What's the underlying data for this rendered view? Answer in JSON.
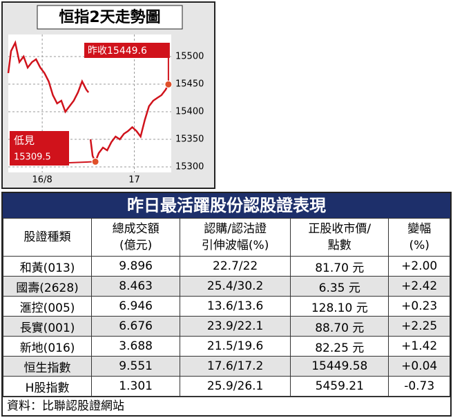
{
  "chart_data": {
    "type": "line",
    "title": "恒指2天走勢圖",
    "x": [
      0,
      1.7,
      4.3,
      6.9,
      9.5,
      12,
      14.7,
      17.2,
      19.8,
      22.4,
      25,
      27.6,
      30.2,
      32.8,
      35.3,
      37.9,
      40.5,
      43.1,
      45.7,
      48.3,
      49.6,
      50,
      50.9,
      52.2,
      53.9,
      56,
      58.6,
      61.2,
      63.8,
      66.4,
      69,
      71.6,
      74.1,
      76.7,
      79.3,
      81.9,
      84.5,
      87.1,
      89.7,
      92.2,
      94.8,
      97.4,
      99.1
    ],
    "values": [
      15470,
      15510,
      15525,
      15490,
      15500,
      15480,
      15490,
      15495,
      15480,
      15470,
      15455,
      15430,
      15415,
      15420,
      15400,
      15410,
      15420,
      15435,
      15455,
      15440,
      15435,
      null,
      15350,
      15320,
      15309.5,
      15325,
      15335,
      15330,
      15345,
      15355,
      15350,
      15360,
      15365,
      15372,
      15365,
      15355,
      15385,
      15410,
      15420,
      15425,
      15430,
      15440,
      15449.6
    ],
    "color": "#d0121b",
    "xlim": [
      0,
      100
    ],
    "xticks": [
      {
        "value": 21,
        "label": "16/8"
      },
      {
        "value": 78,
        "label": "17"
      }
    ],
    "ylim": [
      15290,
      15540
    ],
    "yticks": [
      15300,
      15350,
      15400,
      15450,
      15500
    ],
    "grid": true,
    "annotations": [
      "昨收15449.6",
      "低見",
      "15309.5"
    ]
  },
  "table": {
    "title": "昨日最活躍股份認股證表現",
    "header": [
      [
        "股證種類"
      ],
      [
        "總成交額",
        "(億元)"
      ],
      [
        "認購/認沽證",
        "引伸波幅(%)"
      ],
      [
        "正股收市價/",
        "點數"
      ],
      [
        "變幅",
        "(%)"
      ]
    ],
    "rows": [
      [
        "和黃(013)",
        "9.896",
        "22.7/22",
        "81.70 元",
        "+2.00"
      ],
      [
        "國壽(2628)",
        "8.463",
        "25.4/30.2",
        "6.35 元",
        "+2.42"
      ],
      [
        "滙控(005)",
        "6.946",
        "13.6/13.6",
        "128.10 元",
        "+0.23"
      ],
      [
        "長實(001)",
        "6.676",
        "23.9/22.1",
        "88.70 元",
        "+2.25"
      ],
      [
        "新地(016)",
        "3.688",
        "21.5/19.6",
        "82.25 元",
        "+1.42"
      ],
      [
        "恒生指數",
        "9.551",
        "17.6/17.2",
        "15449.58",
        "+0.04"
      ],
      [
        "H股指數",
        "1.301",
        "25.9/26.1",
        "5459.21",
        "-0.73"
      ]
    ],
    "source": "資料：比聯認股證網站"
  }
}
